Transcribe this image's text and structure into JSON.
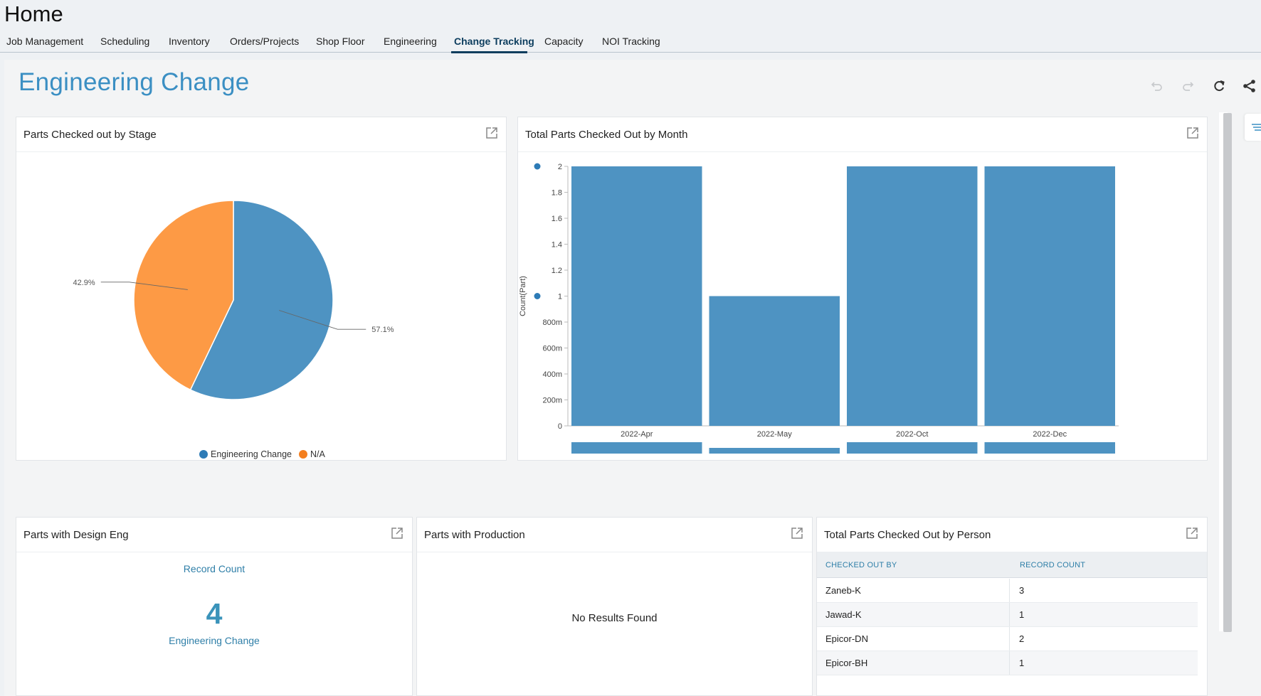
{
  "header": {
    "title": "Home",
    "tabs": [
      {
        "label": "Job Management"
      },
      {
        "label": "Scheduling"
      },
      {
        "label": "Inventory"
      },
      {
        "label": "Orders/Projects"
      },
      {
        "label": "Shop Floor"
      },
      {
        "label": "Engineering"
      },
      {
        "label": "Change Tracking",
        "active": true
      },
      {
        "label": "Capacity"
      },
      {
        "label": "NOI Tracking"
      }
    ]
  },
  "page": {
    "title": "Engineering Change",
    "toolbar": [
      "undo-icon",
      "redo-icon",
      "refresh-icon",
      "share-icon"
    ]
  },
  "colors": {
    "accent": "#3b8fc3",
    "blue_series": "#4e93c2",
    "orange_series": "#fd9a45",
    "legend_blue": "#2d7bb6",
    "legend_orange": "#f47f1f"
  },
  "panels": {
    "pie": {
      "title": "Parts Checked out by Stage",
      "legend": [
        "Engineering Change",
        "N/A"
      ]
    },
    "bar": {
      "title": "Total Parts Checked Out by Month"
    },
    "design": {
      "title": "Parts with Design Eng",
      "record_count_label": "Record Count",
      "value": "4",
      "value_label": "Engineering Change"
    },
    "production": {
      "title": "Parts with Production",
      "empty_text": "No Results Found"
    },
    "person": {
      "title": "Total Parts Checked Out by Person",
      "columns": [
        "CHECKED OUT BY",
        "RECORD COUNT"
      ],
      "rows": [
        {
          "name": "Zaneb-K",
          "count": "3"
        },
        {
          "name": "Jawad-K",
          "count": "1"
        },
        {
          "name": "Epicor-DN",
          "count": "2"
        },
        {
          "name": "Epicor-BH",
          "count": "1"
        }
      ]
    }
  },
  "chart_data": [
    {
      "type": "pie",
      "title": "Parts Checked out by Stage",
      "series": [
        {
          "name": "Engineering Change",
          "value": 57.1,
          "label": "57.1%",
          "color": "#4e93c2"
        },
        {
          "name": "N/A",
          "value": 42.9,
          "label": "42.9%",
          "color": "#fd9a45"
        }
      ],
      "legend_position": "bottom"
    },
    {
      "type": "bar",
      "title": "Total Parts Checked Out by Month",
      "categories": [
        "2022-Apr",
        "2022-May",
        "2022-Oct",
        "2022-Dec"
      ],
      "values": [
        2,
        1,
        2,
        2
      ],
      "ylabel": "Count(Part)",
      "ylim": [
        0,
        2
      ],
      "yticks": [
        "0",
        "200m",
        "400m",
        "600m",
        "800m",
        "1",
        "1.2",
        "1.4",
        "1.6",
        "1.8",
        "2"
      ],
      "color": "#4e93c2",
      "grid": false
    }
  ]
}
